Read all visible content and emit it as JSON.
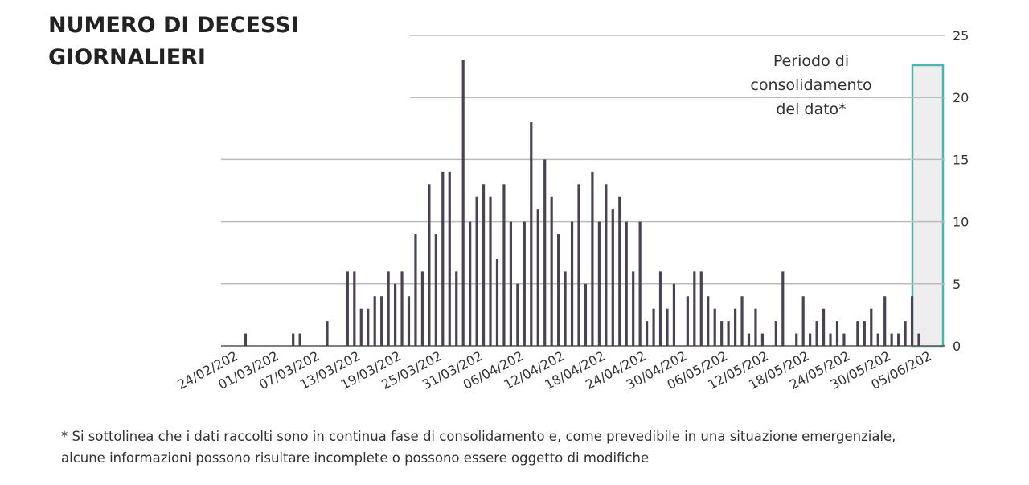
{
  "chart_data": {
    "type": "bar",
    "title": "NUMERO DI DECESSI GIORNALIERI",
    "annotation": [
      "Periodo di",
      "consolidamento",
      "del dato*"
    ],
    "footnote": [
      "* Si sottolinea che i dati raccolti sono in continua fase di consolidamento e, come prevedibile in una situazione emergenziale,",
      "alcune informazioni possono risultare incomplete o possono essere oggetto di modifiche"
    ],
    "categories": [
      "24/02/202",
      null,
      null,
      null,
      null,
      null,
      "01/03/202",
      null,
      null,
      null,
      null,
      null,
      "07/03/202",
      null,
      null,
      null,
      null,
      null,
      "13/03/202",
      null,
      null,
      null,
      null,
      null,
      "19/03/202",
      null,
      null,
      null,
      null,
      null,
      "25/03/202",
      null,
      null,
      null,
      null,
      null,
      "31/03/202",
      null,
      null,
      null,
      null,
      null,
      "06/04/202",
      null,
      null,
      null,
      null,
      null,
      "12/04/202",
      null,
      null,
      null,
      null,
      null,
      "18/04/202",
      null,
      null,
      null,
      null,
      null,
      "24/04/202",
      null,
      null,
      null,
      null,
      null,
      "30/04/202",
      null,
      null,
      null,
      null,
      null,
      "06/05/202",
      null,
      null,
      null,
      null,
      null,
      "12/05/202",
      null,
      null,
      null,
      null,
      null,
      "18/05/202",
      null,
      null,
      null,
      null,
      null,
      "24/05/202",
      null,
      null,
      null,
      null,
      null,
      "30/05/202",
      null,
      null,
      null,
      null,
      null,
      "05/06/202",
      null
    ],
    "values": [
      0,
      1,
      0,
      0,
      0,
      0,
      0,
      0,
      1,
      1,
      0,
      0,
      0,
      2,
      0,
      0,
      6,
      6,
      3,
      3,
      4,
      4,
      6,
      5,
      6,
      4,
      9,
      6,
      13,
      9,
      14,
      14,
      6,
      23,
      10,
      12,
      13,
      12,
      7,
      13,
      10,
      5,
      10,
      18,
      11,
      15,
      12,
      9,
      6,
      10,
      13,
      5,
      14,
      10,
      13,
      11,
      12,
      10,
      6,
      10,
      2,
      3,
      6,
      3,
      5,
      0,
      4,
      6,
      6,
      4,
      3,
      2,
      2,
      3,
      4,
      1,
      3,
      1,
      0,
      2,
      6,
      0,
      1,
      4,
      1,
      2,
      3,
      1,
      2,
      1,
      0,
      2,
      2,
      3,
      1,
      4,
      1,
      1,
      2,
      4,
      1,
      0,
      0,
      0
    ],
    "color": "#4a4252",
    "ylim": [
      0,
      25
    ],
    "yticks": [
      0,
      5,
      10,
      15,
      20,
      25
    ],
    "grid": true
  }
}
